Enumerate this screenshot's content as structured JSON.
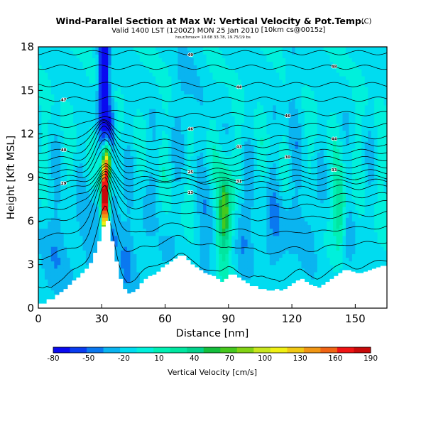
{
  "chart_data": {
    "type": "heatmap",
    "title": "Wind-Parallel Section at Max W: Vertical Velocity & Pot.Temp.",
    "title_mark": "(C)",
    "subtitle": "Valid 1400 LST (1200Z) MON 25 Jan 2010",
    "subtitle_note": "[10km cs@0015z]",
    "subsubtitle": "hour/hmax= 10.68 33.78, 19.75/19 bs",
    "xlabel": "Distance [nm]",
    "ylabel": "Height [Kft MSL]",
    "xlim": [
      0,
      165
    ],
    "ylim": [
      0,
      18
    ],
    "xticks": [
      "0",
      "30",
      "60",
      "90",
      "120",
      "150"
    ],
    "yticks": [
      "0",
      "3",
      "6",
      "9",
      "12",
      "15",
      "18"
    ],
    "colorbar": {
      "label": "Vertical Velocity [cm/s]",
      "ticks": [
        "-80",
        "-50",
        "-20",
        "10",
        "40",
        "70",
        "100",
        "130",
        "160",
        "190"
      ],
      "colors": [
        "#0a0af0",
        "#0a3cf0",
        "#0a78f0",
        "#0ab4f0",
        "#00dcf0",
        "#00f0dc",
        "#00f0b4",
        "#00e6a0",
        "#00d28c",
        "#14be3c",
        "#46c81e",
        "#82d214",
        "#c8e61e",
        "#f0f014",
        "#f0c814",
        "#f09614",
        "#f06414",
        "#f01414",
        "#c80a0a"
      ]
    },
    "terrain_x": [
      0,
      2,
      4,
      6,
      8,
      10,
      12,
      14,
      16,
      18,
      20,
      22,
      24,
      26,
      28,
      30,
      32,
      34,
      36,
      38,
      40,
      42,
      44,
      46,
      48,
      50,
      52,
      54,
      56,
      58,
      60,
      62,
      64,
      66,
      68,
      70,
      72,
      74,
      76,
      78,
      80,
      82,
      84,
      86,
      88,
      90,
      92,
      94,
      96,
      98,
      100,
      102,
      104,
      106,
      108,
      110,
      112,
      114,
      116,
      118,
      120,
      122,
      124,
      126,
      128,
      130,
      132,
      134,
      136,
      138,
      140,
      142,
      144,
      146,
      148,
      150,
      152,
      154,
      156,
      158,
      160,
      162,
      165
    ],
    "terrain_z": [
      0.3,
      0.3,
      0.6,
      0.6,
      0.9,
      1.1,
      1.3,
      1.6,
      1.9,
      2.1,
      2.4,
      2.7,
      3.1,
      3.8,
      4.6,
      5.6,
      6.0,
      4.6,
      3.2,
      2.0,
      1.3,
      1.0,
      1.1,
      1.3,
      1.7,
      2.0,
      2.2,
      2.3,
      2.5,
      2.8,
      3.0,
      3.2,
      3.4,
      3.6,
      3.6,
      3.3,
      3.0,
      2.8,
      2.6,
      2.4,
      2.3,
      2.2,
      2.0,
      1.8,
      2.0,
      2.3,
      2.3,
      2.1,
      1.9,
      1.7,
      1.5,
      1.5,
      1.3,
      1.3,
      1.2,
      1.2,
      1.3,
      1.2,
      1.3,
      1.5,
      1.7,
      1.9,
      2.0,
      1.8,
      1.6,
      1.5,
      1.4,
      1.6,
      1.8,
      2.0,
      2.2,
      2.4,
      2.6,
      2.6,
      2.5,
      2.4,
      2.4,
      2.5,
      2.6,
      2.7,
      2.8,
      2.9,
      3.0
    ],
    "w_features": [
      {
        "x": 31.5,
        "z": 8.8,
        "sx": 1.4,
        "sz": 1.6,
        "w": 190
      },
      {
        "x": 31.5,
        "z": 6.5,
        "sx": 1.2,
        "sz": 1.4,
        "w": 150
      },
      {
        "x": 33.0,
        "z": 10.2,
        "sx": 1.2,
        "sz": 0.8,
        "w": 90
      },
      {
        "x": 31.0,
        "z": 15.5,
        "sx": 1.8,
        "sz": 4.0,
        "w": -80
      },
      {
        "x": 34.5,
        "z": 12.5,
        "sx": 1.5,
        "sz": 1.5,
        "w": -40
      },
      {
        "x": 36.0,
        "z": 6.5,
        "sx": 2.5,
        "sz": 2.5,
        "w": -30
      },
      {
        "x": 42.0,
        "z": 3.2,
        "sx": 2.6,
        "sz": 2.2,
        "w": -25
      },
      {
        "x": 88.0,
        "z": 6.8,
        "sx": 2.0,
        "sz": 1.8,
        "w": 70
      },
      {
        "x": 88.0,
        "z": 6.0,
        "sx": 3.0,
        "sz": 3.0,
        "w": 30
      },
      {
        "x": 80.0,
        "z": 5.0,
        "sx": 3.0,
        "sz": 2.5,
        "w": -25
      },
      {
        "x": 97.0,
        "z": 5.5,
        "sx": 3.0,
        "sz": 2.5,
        "w": -25
      },
      {
        "x": 112.0,
        "z": 5.2,
        "sx": 5.0,
        "sz": 2.2,
        "w": -25
      },
      {
        "x": 143.0,
        "z": 6.8,
        "sx": 2.0,
        "sz": 2.0,
        "w": 55
      },
      {
        "x": 146.0,
        "z": 4.5,
        "sx": 3.0,
        "sz": 2.0,
        "w": -20
      },
      {
        "x": 25.0,
        "z": 5.0,
        "sx": 3.5,
        "sz": 2.5,
        "w": -25
      },
      {
        "x": 8.0,
        "z": 3.5,
        "sx": 6.0,
        "sz": 3.0,
        "w": -20
      },
      {
        "x": 60.0,
        "z": 3.8,
        "sx": 3.0,
        "sz": 1.2,
        "w": -15
      },
      {
        "x": 120.0,
        "z": 13.0,
        "sx": 2.0,
        "sz": 5.0,
        "w": -15
      },
      {
        "x": 70.0,
        "z": 14.5,
        "sx": 4.0,
        "sz": 3.0,
        "w": -15
      },
      {
        "x": 128.0,
        "z": 5.5,
        "sx": 3.0,
        "sz": 2.5,
        "w": -20
      },
      {
        "x": 50.0,
        "z": 5.5,
        "sx": 3.0,
        "sz": 3.0,
        "w": -15
      }
    ],
    "isentropes": [
      {
        "z": 2.2,
        "label": ""
      },
      {
        "z": 4.0,
        "label": ""
      },
      {
        "z": 5.2,
        "label": ""
      },
      {
        "z": 6.2,
        "label": ""
      },
      {
        "z": 7.0,
        "label": ""
      },
      {
        "z": 7.6,
        "label": "13"
      },
      {
        "z": 8.2,
        "label": ""
      },
      {
        "z": 8.6,
        "label": "29"
      },
      {
        "z": 9.0,
        "label": "31"
      },
      {
        "z": 9.4,
        "label": "33"
      },
      {
        "z": 9.8,
        "label": "25"
      },
      {
        "z": 10.3,
        "label": "30"
      },
      {
        "z": 10.8,
        "label": "40"
      },
      {
        "z": 11.3,
        "label": "43"
      },
      {
        "z": 11.8,
        "label": "44"
      },
      {
        "z": 12.6,
        "label": "46"
      },
      {
        "z": 13.4,
        "label": "46"
      },
      {
        "z": 14.4,
        "label": "47"
      },
      {
        "z": 15.4,
        "label": "44"
      },
      {
        "z": 16.6,
        "label": "48"
      },
      {
        "z": 17.6,
        "label": "49"
      }
    ]
  }
}
